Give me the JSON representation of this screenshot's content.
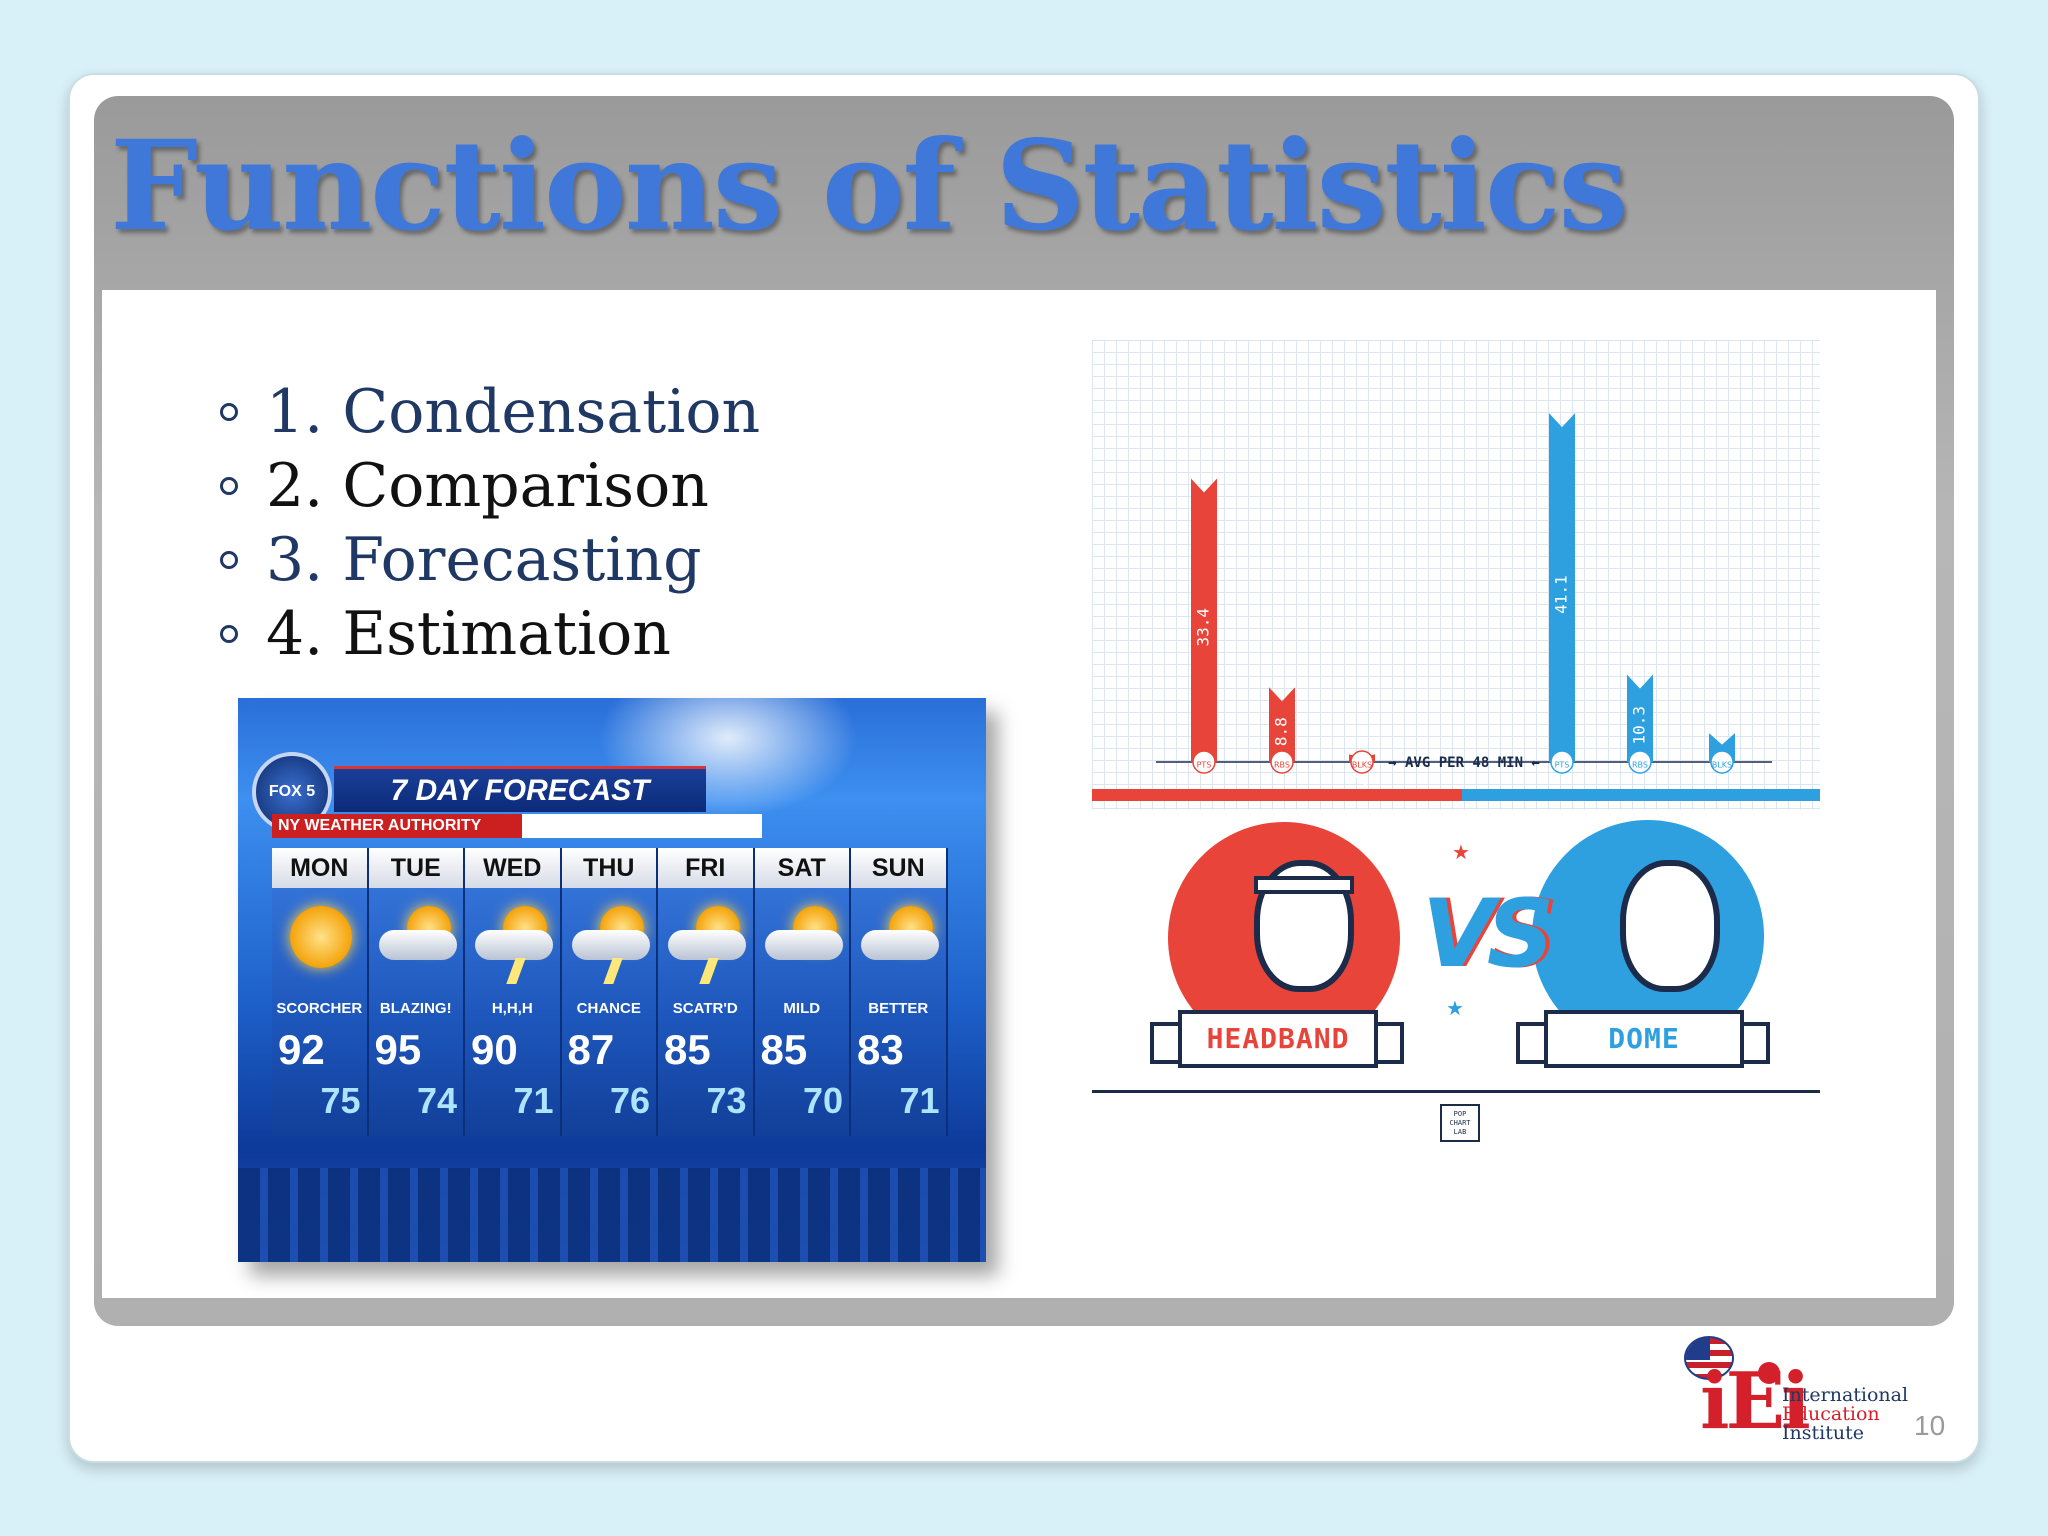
{
  "slide": {
    "title": "Functions of Statistics",
    "bullets": [
      {
        "label": "1. Condensation",
        "color": "#1f3864"
      },
      {
        "label": "2. Comparison",
        "color": "#111111"
      },
      {
        "label": "3. Forecasting",
        "color": "#1f3864"
      },
      {
        "label": "4. Estimation",
        "color": "#111111"
      }
    ],
    "page_number": "10"
  },
  "weather": {
    "channel": "FOX 5",
    "title": "7 DAY FORECAST",
    "subtitle": "NY WEATHER AUTHORITY",
    "days": [
      {
        "day": "MON",
        "condition": "SCORCHER",
        "high": "92",
        "low": "75",
        "icon": "sun-icon"
      },
      {
        "day": "TUE",
        "condition": "BLAZING!",
        "high": "95",
        "low": "74",
        "icon": "sun-cloud-icon"
      },
      {
        "day": "WED",
        "condition": "H,H,H",
        "high": "90",
        "low": "71",
        "icon": "storm-icon"
      },
      {
        "day": "THU",
        "condition": "CHANCE",
        "high": "87",
        "low": "76",
        "icon": "storm-icon"
      },
      {
        "day": "FRI",
        "condition": "SCATR'D",
        "high": "85",
        "low": "73",
        "icon": "storm-icon"
      },
      {
        "day": "SAT",
        "condition": "MILD",
        "high": "85",
        "low": "70",
        "icon": "partly-cloudy-icon"
      },
      {
        "day": "SUN",
        "condition": "BETTER",
        "high": "83",
        "low": "71",
        "icon": "partly-cloudy-icon"
      }
    ]
  },
  "chart_data": {
    "type": "bar",
    "annotation": "AVG PER 48 MIN",
    "series": [
      {
        "name": "HEADBAND",
        "color": "#e8443a",
        "categories": [
          "PTS",
          "RBS",
          "BLKS"
        ],
        "values": [
          33.4,
          8.8,
          0.9
        ],
        "labels": [
          "33.4",
          "8.8",
          ".9"
        ]
      },
      {
        "name": "DOME",
        "color": "#2ea0e0",
        "categories": [
          "PTS",
          "RBS",
          "BLKS"
        ],
        "values": [
          41.1,
          10.3,
          3.4
        ],
        "labels": [
          "41.1",
          "10.3",
          "3.4"
        ]
      }
    ],
    "ylim": [
      0,
      45
    ],
    "grid": true
  },
  "versus": {
    "left_label": "HEADBAND",
    "right_label": "DOME",
    "vs": "VS",
    "credit": "POP CHART LAB"
  },
  "logo": {
    "mark": "iEi",
    "lines": [
      "International",
      "Education",
      "Institute"
    ]
  }
}
